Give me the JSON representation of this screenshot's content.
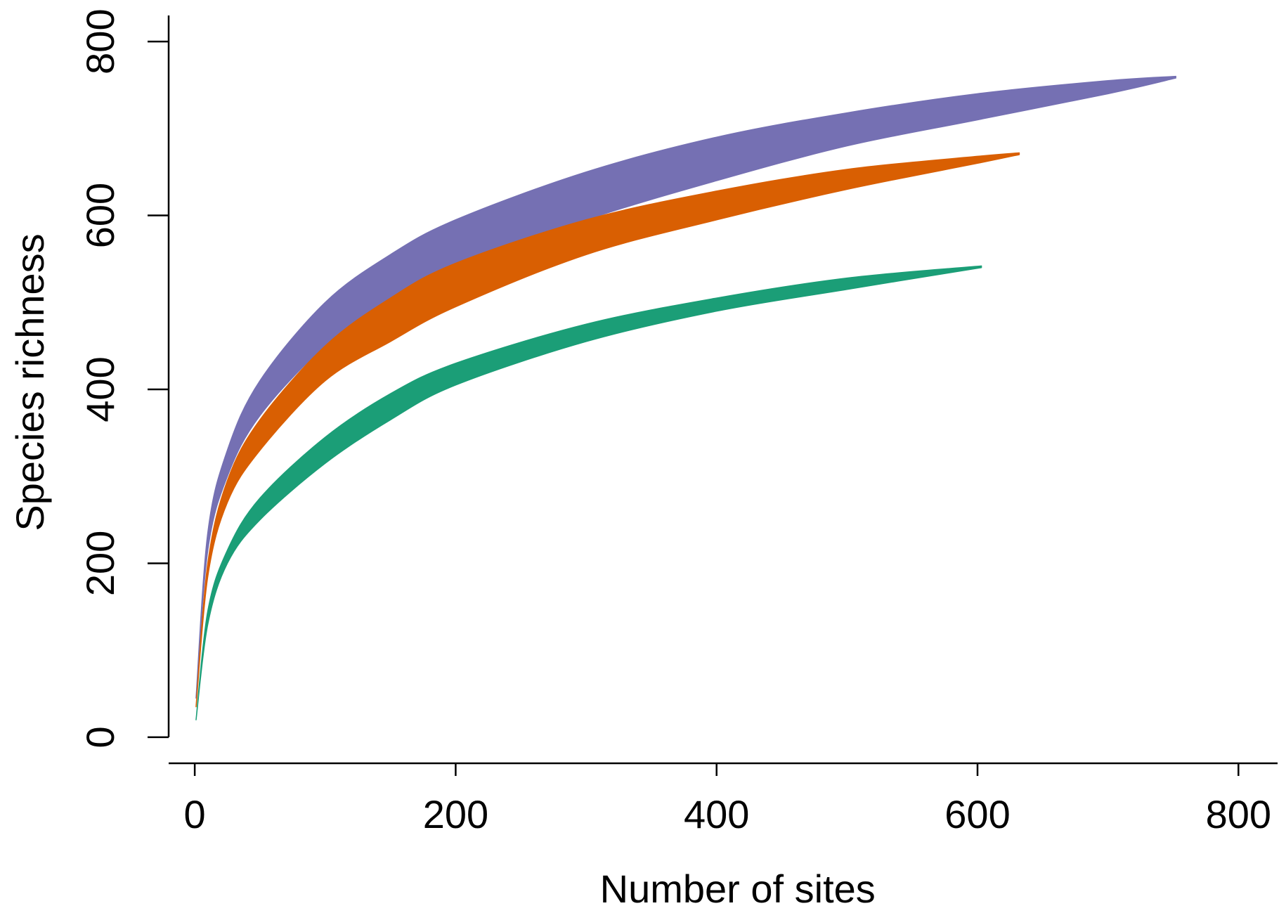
{
  "chart_data": {
    "type": "area",
    "xlabel": "Number of sites",
    "ylabel": "Species richness",
    "xlim": [
      -20,
      830
    ],
    "ylim": [
      -30,
      830
    ],
    "x_ticks": [
      0,
      200,
      400,
      600,
      800
    ],
    "y_ticks": [
      0,
      200,
      400,
      600,
      800
    ],
    "x_tick_labels": [
      "0",
      "200",
      "400",
      "600",
      "800"
    ],
    "y_tick_labels": [
      "0",
      "200",
      "400",
      "600",
      "800"
    ],
    "grid": false,
    "legend": "none",
    "series": [
      {
        "color": "#7570b3",
        "x": [
          1,
          10,
          25,
          50,
          100,
          150,
          200,
          300,
          400,
          500,
          600,
          700,
          752
        ],
        "lower": [
          45,
          215,
          300,
          370,
          450,
          500,
          540,
          595,
          640,
          680,
          710,
          740,
          758
        ],
        "upper": [
          45,
          235,
          330,
          410,
          500,
          555,
          595,
          650,
          690,
          718,
          740,
          755,
          760
        ]
      },
      {
        "color": "#d95f02",
        "x": [
          1,
          10,
          25,
          50,
          100,
          150,
          200,
          300,
          400,
          500,
          600,
          632
        ],
        "lower": [
          35,
          185,
          270,
          330,
          410,
          455,
          495,
          555,
          595,
          630,
          660,
          670
        ],
        "upper": [
          35,
          200,
          295,
          365,
          450,
          505,
          545,
          595,
          628,
          653,
          668,
          672
        ]
      },
      {
        "color": "#1b9e77",
        "x": [
          1,
          10,
          25,
          50,
          100,
          150,
          200,
          300,
          400,
          500,
          603
        ],
        "lower": [
          20,
          130,
          200,
          250,
          315,
          365,
          405,
          455,
          490,
          515,
          540
        ],
        "upper": [
          20,
          145,
          215,
          275,
          345,
          395,
          430,
          475,
          505,
          528,
          542
        ]
      }
    ]
  }
}
